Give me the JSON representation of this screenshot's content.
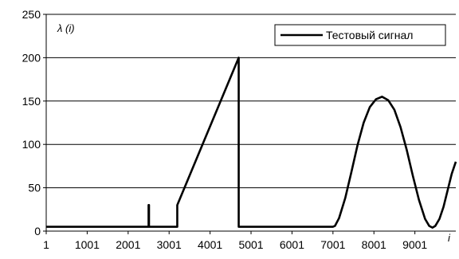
{
  "chart_data": {
    "type": "line",
    "ylabel": "λ (i)",
    "xlabel": "i",
    "xlim": [
      1,
      10000
    ],
    "ylim": [
      0,
      250
    ],
    "x_ticks": [
      "1",
      "1001",
      "2001",
      "3001",
      "4001",
      "5001",
      "6001",
      "7001",
      "8001",
      "9001"
    ],
    "y_ticks": [
      "0",
      "50",
      "100",
      "150",
      "200",
      "250"
    ],
    "grid": "horizontal",
    "legend_position": "top-right",
    "series": [
      {
        "name": "Тестовый сигнал",
        "color": "#000000",
        "points": [
          [
            1,
            5
          ],
          [
            2500,
            5
          ],
          [
            2500,
            30
          ],
          [
            2510,
            30
          ],
          [
            2510,
            5
          ],
          [
            3200,
            5
          ],
          [
            3200,
            30
          ],
          [
            4700,
            200
          ],
          [
            4700,
            5
          ],
          [
            7000,
            5
          ],
          [
            7050,
            6
          ],
          [
            7150,
            15
          ],
          [
            7300,
            38
          ],
          [
            7450,
            68
          ],
          [
            7600,
            99
          ],
          [
            7750,
            125
          ],
          [
            7900,
            143
          ],
          [
            8050,
            152
          ],
          [
            8200,
            155
          ],
          [
            8350,
            151
          ],
          [
            8500,
            140
          ],
          [
            8650,
            120
          ],
          [
            8800,
            94
          ],
          [
            8950,
            64
          ],
          [
            9100,
            36
          ],
          [
            9250,
            14
          ],
          [
            9350,
            6
          ],
          [
            9430,
            4
          ],
          [
            9500,
            6
          ],
          [
            9600,
            14
          ],
          [
            9700,
            28
          ],
          [
            9800,
            47
          ],
          [
            9900,
            66
          ],
          [
            10000,
            80
          ]
        ]
      }
    ]
  }
}
